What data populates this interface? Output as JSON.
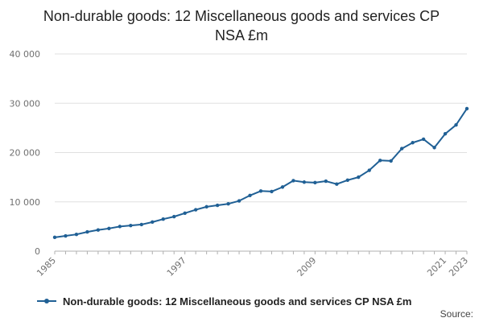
{
  "chart_data": {
    "type": "line",
    "title_lines": [
      "Non-durable goods: 12 Miscellaneous goods and services CP",
      "NSA £m"
    ],
    "xlabel": "",
    "ylabel": "",
    "x": [
      1985,
      1986,
      1987,
      1988,
      1989,
      1990,
      1991,
      1992,
      1993,
      1994,
      1995,
      1996,
      1997,
      1998,
      1999,
      2000,
      2001,
      2002,
      2003,
      2004,
      2005,
      2006,
      2007,
      2008,
      2009,
      2010,
      2011,
      2012,
      2013,
      2014,
      2015,
      2016,
      2017,
      2018,
      2019,
      2020,
      2021,
      2022,
      2023
    ],
    "series": [
      {
        "name": "Non-durable goods: 12 Miscellaneous goods and services CP NSA £m",
        "values": [
          2800,
          3100,
          3400,
          3900,
          4300,
          4600,
          5000,
          5200,
          5400,
          5900,
          6500,
          7000,
          7700,
          8400,
          9000,
          9300,
          9600,
          10200,
          11300,
          12200,
          12100,
          13000,
          14300,
          14000,
          13900,
          14200,
          13600,
          14400,
          15000,
          16400,
          18400,
          18300,
          20800,
          22000,
          22700,
          21000,
          23800,
          25600,
          28900
        ]
      }
    ],
    "ylim": [
      0,
      40000
    ],
    "y_ticks": [
      0,
      10000,
      20000,
      30000,
      40000
    ],
    "y_tick_labels": [
      "0",
      "10 000",
      "20 000",
      "30 000",
      "40 000"
    ],
    "x_tick_labels": [
      "1985",
      "1997",
      "2009",
      "2021",
      "2023"
    ],
    "grid": true,
    "legend_position": "bottom-left",
    "source_label": "Source:",
    "colors": {
      "line": "#206095",
      "grid": "#e0e0e0",
      "axis": "#b0b0b0"
    }
  }
}
